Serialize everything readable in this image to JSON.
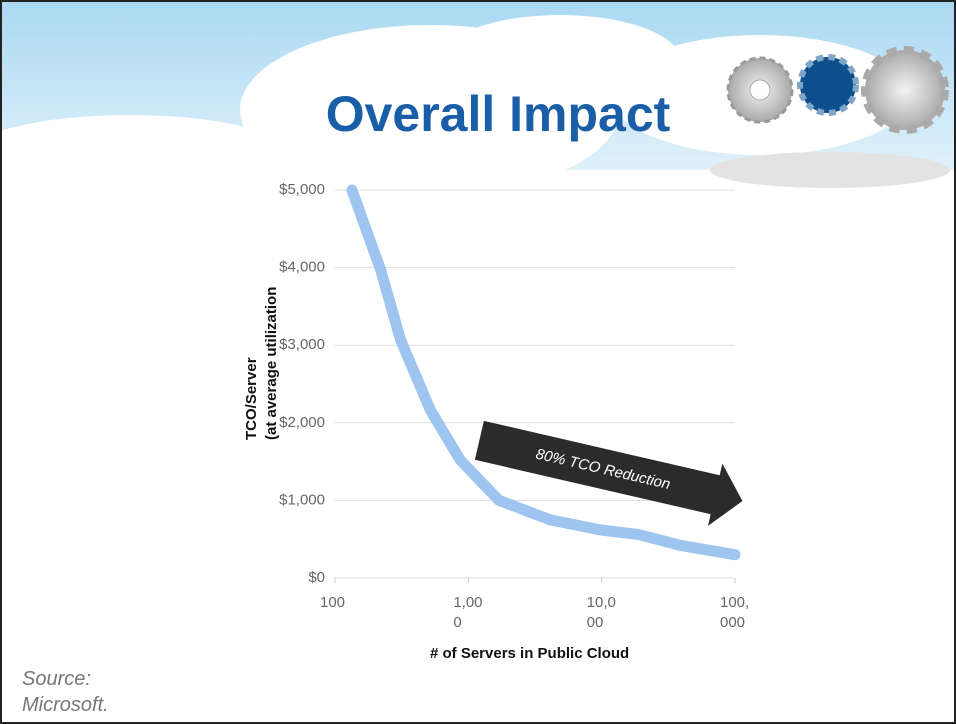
{
  "chart_data": {
    "type": "line",
    "title": "Overall Impact",
    "ylabel": [
      "TCO/Server",
      "(at average utilization"
    ],
    "xlabel": "# of Servers in Public Cloud",
    "annotation": "80% TCO Reduction",
    "source": "Source: Microsoft.",
    "x": [
      134,
      220,
      310,
      520,
      870,
      1700,
      4100,
      9700,
      19000,
      39000,
      100000
    ],
    "series": [
      {
        "name": "TCO/Server",
        "color": "#9ec4f0",
        "values": [
          5000,
          3970,
          3070,
          2160,
          1520,
          1000,
          750,
          620,
          560,
          420,
          300
        ]
      }
    ],
    "xscale": "log",
    "xlim": [
      100,
      100000
    ],
    "xticks": [
      100,
      {
        "value": 1000,
        "label": "1,000"
      },
      {
        "value": 10000,
        "label": "10,000"
      },
      {
        "value": 100000,
        "label": "100,000"
      }
    ],
    "ylim": [
      0,
      5000
    ],
    "yticks": [
      {
        "value": 0,
        "label": "$0"
      },
      {
        "value": 1000,
        "label": "$1,000"
      },
      {
        "value": 2000,
        "label": "$2,000"
      },
      {
        "value": 3000,
        "label": "$3,000"
      },
      {
        "value": 4000,
        "label": "$4,000"
      },
      {
        "value": 5000,
        "label": "$5,000"
      }
    ],
    "grid": true
  }
}
